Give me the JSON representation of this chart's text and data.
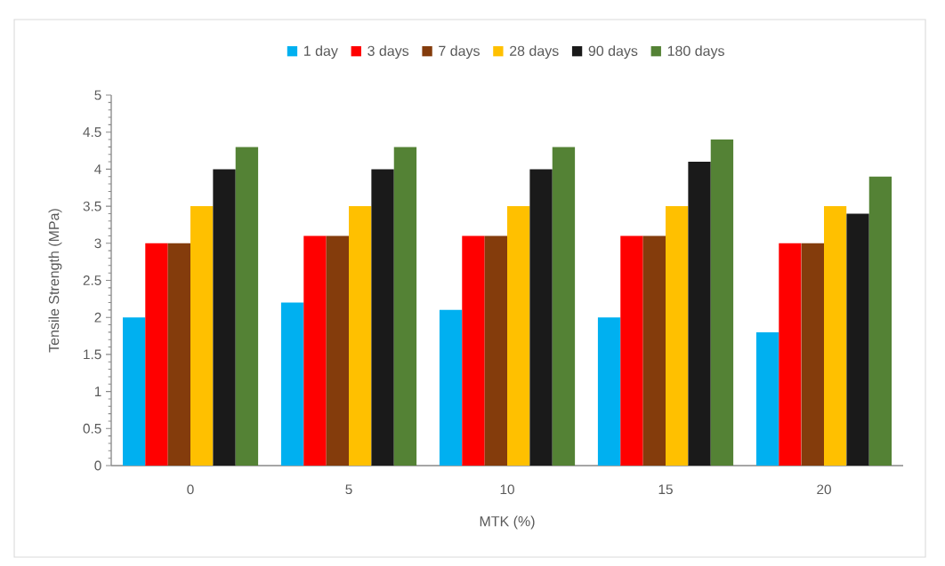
{
  "chart_data": {
    "type": "bar",
    "xlabel": "MTK (%)",
    "ylabel": "Tensile Strength (MPa)",
    "categories": [
      "0",
      "5",
      "10",
      "15",
      "20"
    ],
    "series": [
      {
        "name": "1 day",
        "color": "#00b0f0",
        "values": [
          2.0,
          2.2,
          2.1,
          2.0,
          1.8
        ]
      },
      {
        "name": "3 days",
        "color": "#ff0000",
        "values": [
          3.0,
          3.1,
          3.1,
          3.1,
          3.0
        ]
      },
      {
        "name": "7 days",
        "color": "#843c0c",
        "values": [
          3.0,
          3.1,
          3.1,
          3.1,
          3.0
        ]
      },
      {
        "name": "28 days",
        "color": "#ffc000",
        "values": [
          3.5,
          3.5,
          3.5,
          3.5,
          3.5
        ]
      },
      {
        "name": "90 days",
        "color": "#1a1a1a",
        "values": [
          4.0,
          4.0,
          4.0,
          4.1,
          3.4
        ]
      },
      {
        "name": "180 days",
        "color": "#548235",
        "values": [
          4.3,
          4.3,
          4.3,
          4.4,
          3.9
        ]
      }
    ],
    "ylim": [
      0,
      5
    ],
    "yticks": [
      0,
      0.5,
      1,
      1.5,
      2,
      2.5,
      3,
      3.5,
      4,
      4.5,
      5
    ],
    "legend": "top"
  }
}
